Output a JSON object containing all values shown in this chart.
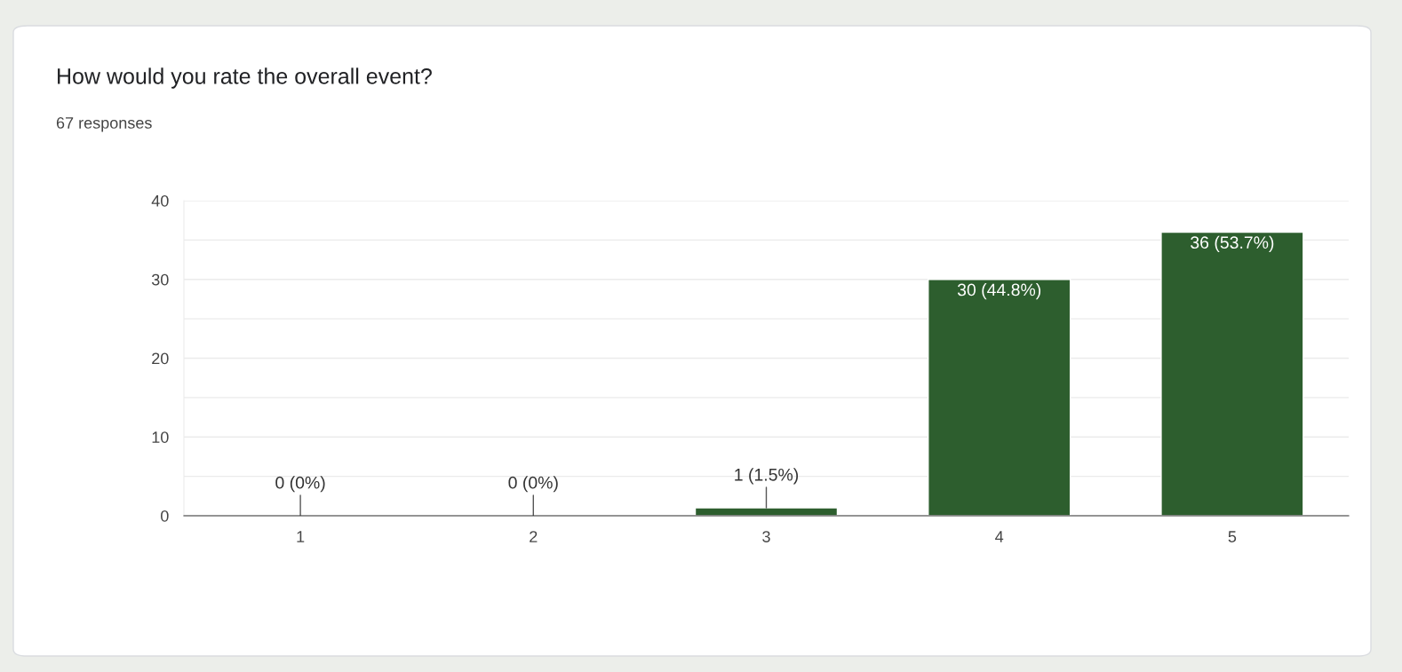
{
  "chart_data": {
    "type": "bar",
    "title": "How would you rate the overall event?",
    "subtitle": "67 responses",
    "categories": [
      "1",
      "2",
      "3",
      "4",
      "5"
    ],
    "values": [
      0,
      0,
      1,
      30,
      36
    ],
    "value_labels": [
      "0 (0%)",
      "0 (0%)",
      "1 (1.5%)",
      "30 (44.8%)",
      "36 (53.7%)"
    ],
    "color": "#2d5e2e",
    "ylim": [
      0,
      40
    ],
    "yticks": [
      0,
      {
        "value": 5,
        "label": null
      },
      10,
      {
        "value": 15,
        "label": null
      },
      20,
      {
        "value": 25,
        "label": null
      },
      30,
      {
        "value": 35,
        "label": null
      },
      40
    ],
    "grid": "y",
    "legend": false
  }
}
